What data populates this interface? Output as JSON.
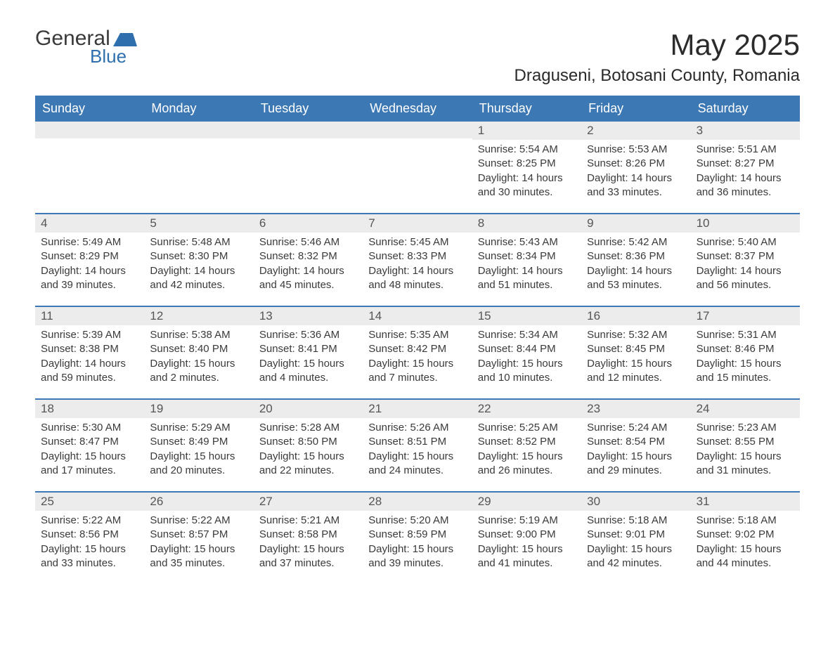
{
  "logo": {
    "word1": "General",
    "word2": "Blue"
  },
  "title": "May 2025",
  "location": "Draguseni, Botosani County, Romania",
  "colors": {
    "header_bg": "#3c78b4",
    "header_text": "#ffffff",
    "daynum_bg": "#ececec",
    "body_text": "#3a3a3a",
    "accent_blue": "#2f6fae",
    "border_blue": "#3c78b4",
    "page_bg": "#ffffff"
  },
  "day_names": [
    "Sunday",
    "Monday",
    "Tuesday",
    "Wednesday",
    "Thursday",
    "Friday",
    "Saturday"
  ],
  "weeks": [
    [
      {
        "empty": true
      },
      {
        "empty": true
      },
      {
        "empty": true
      },
      {
        "empty": true
      },
      {
        "day": "1",
        "sunrise": "Sunrise: 5:54 AM",
        "sunset": "Sunset: 8:25 PM",
        "daylight": "Daylight: 14 hours and 30 minutes."
      },
      {
        "day": "2",
        "sunrise": "Sunrise: 5:53 AM",
        "sunset": "Sunset: 8:26 PM",
        "daylight": "Daylight: 14 hours and 33 minutes."
      },
      {
        "day": "3",
        "sunrise": "Sunrise: 5:51 AM",
        "sunset": "Sunset: 8:27 PM",
        "daylight": "Daylight: 14 hours and 36 minutes."
      }
    ],
    [
      {
        "day": "4",
        "sunrise": "Sunrise: 5:49 AM",
        "sunset": "Sunset: 8:29 PM",
        "daylight": "Daylight: 14 hours and 39 minutes."
      },
      {
        "day": "5",
        "sunrise": "Sunrise: 5:48 AM",
        "sunset": "Sunset: 8:30 PM",
        "daylight": "Daylight: 14 hours and 42 minutes."
      },
      {
        "day": "6",
        "sunrise": "Sunrise: 5:46 AM",
        "sunset": "Sunset: 8:32 PM",
        "daylight": "Daylight: 14 hours and 45 minutes."
      },
      {
        "day": "7",
        "sunrise": "Sunrise: 5:45 AM",
        "sunset": "Sunset: 8:33 PM",
        "daylight": "Daylight: 14 hours and 48 minutes."
      },
      {
        "day": "8",
        "sunrise": "Sunrise: 5:43 AM",
        "sunset": "Sunset: 8:34 PM",
        "daylight": "Daylight: 14 hours and 51 minutes."
      },
      {
        "day": "9",
        "sunrise": "Sunrise: 5:42 AM",
        "sunset": "Sunset: 8:36 PM",
        "daylight": "Daylight: 14 hours and 53 minutes."
      },
      {
        "day": "10",
        "sunrise": "Sunrise: 5:40 AM",
        "sunset": "Sunset: 8:37 PM",
        "daylight": "Daylight: 14 hours and 56 minutes."
      }
    ],
    [
      {
        "day": "11",
        "sunrise": "Sunrise: 5:39 AM",
        "sunset": "Sunset: 8:38 PM",
        "daylight": "Daylight: 14 hours and 59 minutes."
      },
      {
        "day": "12",
        "sunrise": "Sunrise: 5:38 AM",
        "sunset": "Sunset: 8:40 PM",
        "daylight": "Daylight: 15 hours and 2 minutes."
      },
      {
        "day": "13",
        "sunrise": "Sunrise: 5:36 AM",
        "sunset": "Sunset: 8:41 PM",
        "daylight": "Daylight: 15 hours and 4 minutes."
      },
      {
        "day": "14",
        "sunrise": "Sunrise: 5:35 AM",
        "sunset": "Sunset: 8:42 PM",
        "daylight": "Daylight: 15 hours and 7 minutes."
      },
      {
        "day": "15",
        "sunrise": "Sunrise: 5:34 AM",
        "sunset": "Sunset: 8:44 PM",
        "daylight": "Daylight: 15 hours and 10 minutes."
      },
      {
        "day": "16",
        "sunrise": "Sunrise: 5:32 AM",
        "sunset": "Sunset: 8:45 PM",
        "daylight": "Daylight: 15 hours and 12 minutes."
      },
      {
        "day": "17",
        "sunrise": "Sunrise: 5:31 AM",
        "sunset": "Sunset: 8:46 PM",
        "daylight": "Daylight: 15 hours and 15 minutes."
      }
    ],
    [
      {
        "day": "18",
        "sunrise": "Sunrise: 5:30 AM",
        "sunset": "Sunset: 8:47 PM",
        "daylight": "Daylight: 15 hours and 17 minutes."
      },
      {
        "day": "19",
        "sunrise": "Sunrise: 5:29 AM",
        "sunset": "Sunset: 8:49 PM",
        "daylight": "Daylight: 15 hours and 20 minutes."
      },
      {
        "day": "20",
        "sunrise": "Sunrise: 5:28 AM",
        "sunset": "Sunset: 8:50 PM",
        "daylight": "Daylight: 15 hours and 22 minutes."
      },
      {
        "day": "21",
        "sunrise": "Sunrise: 5:26 AM",
        "sunset": "Sunset: 8:51 PM",
        "daylight": "Daylight: 15 hours and 24 minutes."
      },
      {
        "day": "22",
        "sunrise": "Sunrise: 5:25 AM",
        "sunset": "Sunset: 8:52 PM",
        "daylight": "Daylight: 15 hours and 26 minutes."
      },
      {
        "day": "23",
        "sunrise": "Sunrise: 5:24 AM",
        "sunset": "Sunset: 8:54 PM",
        "daylight": "Daylight: 15 hours and 29 minutes."
      },
      {
        "day": "24",
        "sunrise": "Sunrise: 5:23 AM",
        "sunset": "Sunset: 8:55 PM",
        "daylight": "Daylight: 15 hours and 31 minutes."
      }
    ],
    [
      {
        "day": "25",
        "sunrise": "Sunrise: 5:22 AM",
        "sunset": "Sunset: 8:56 PM",
        "daylight": "Daylight: 15 hours and 33 minutes."
      },
      {
        "day": "26",
        "sunrise": "Sunrise: 5:22 AM",
        "sunset": "Sunset: 8:57 PM",
        "daylight": "Daylight: 15 hours and 35 minutes."
      },
      {
        "day": "27",
        "sunrise": "Sunrise: 5:21 AM",
        "sunset": "Sunset: 8:58 PM",
        "daylight": "Daylight: 15 hours and 37 minutes."
      },
      {
        "day": "28",
        "sunrise": "Sunrise: 5:20 AM",
        "sunset": "Sunset: 8:59 PM",
        "daylight": "Daylight: 15 hours and 39 minutes."
      },
      {
        "day": "29",
        "sunrise": "Sunrise: 5:19 AM",
        "sunset": "Sunset: 9:00 PM",
        "daylight": "Daylight: 15 hours and 41 minutes."
      },
      {
        "day": "30",
        "sunrise": "Sunrise: 5:18 AM",
        "sunset": "Sunset: 9:01 PM",
        "daylight": "Daylight: 15 hours and 42 minutes."
      },
      {
        "day": "31",
        "sunrise": "Sunrise: 5:18 AM",
        "sunset": "Sunset: 9:02 PM",
        "daylight": "Daylight: 15 hours and 44 minutes."
      }
    ]
  ]
}
